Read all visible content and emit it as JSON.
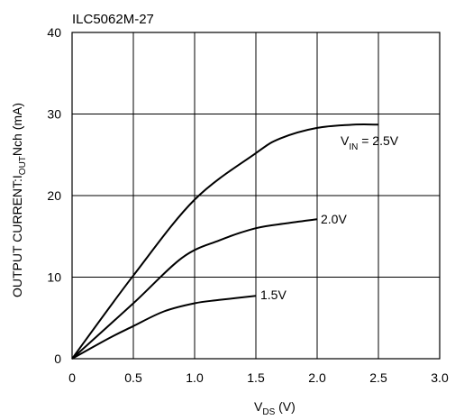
{
  "chart_data": {
    "type": "line",
    "title": "ILC5062M-27",
    "xlabel": {
      "main": "V",
      "sub": "DS",
      "unit": " (V)"
    },
    "ylabel": {
      "prefix": "OUTPUT CURRENT:I",
      "sub": "OUT",
      "suffix": "Nch (mA)"
    },
    "xlim": [
      0,
      3.0
    ],
    "ylim": [
      0,
      40
    ],
    "x_ticks": [
      "0",
      "0.5",
      "1.0",
      "1.5",
      "2.0",
      "2.5",
      "3.0"
    ],
    "y_ticks": [
      "0",
      "10",
      "20",
      "30",
      "40"
    ],
    "grid": true,
    "series": [
      {
        "name": "2.5V",
        "label_prefix": "V",
        "label_sub": "IN",
        "label_text": " = 2.5V",
        "x": [
          0,
          0.5,
          1.0,
          1.5,
          1.7,
          2.0,
          2.3,
          2.5
        ],
        "y": [
          0,
          10.2,
          19.5,
          25.2,
          27.0,
          28.3,
          28.7,
          28.7
        ]
      },
      {
        "name": "2.0V",
        "label_text": "2.0V",
        "x": [
          0,
          0.5,
          0.9,
          1.2,
          1.5,
          1.75,
          2.0
        ],
        "y": [
          0,
          6.8,
          12.4,
          14.5,
          16.0,
          16.6,
          17.1
        ]
      },
      {
        "name": "1.5V",
        "label_text": "1.5V",
        "x": [
          0,
          0.3,
          0.5,
          0.75,
          1.0,
          1.2,
          1.5
        ],
        "y": [
          0,
          2.5,
          4.0,
          5.8,
          6.8,
          7.2,
          7.7
        ]
      }
    ]
  }
}
